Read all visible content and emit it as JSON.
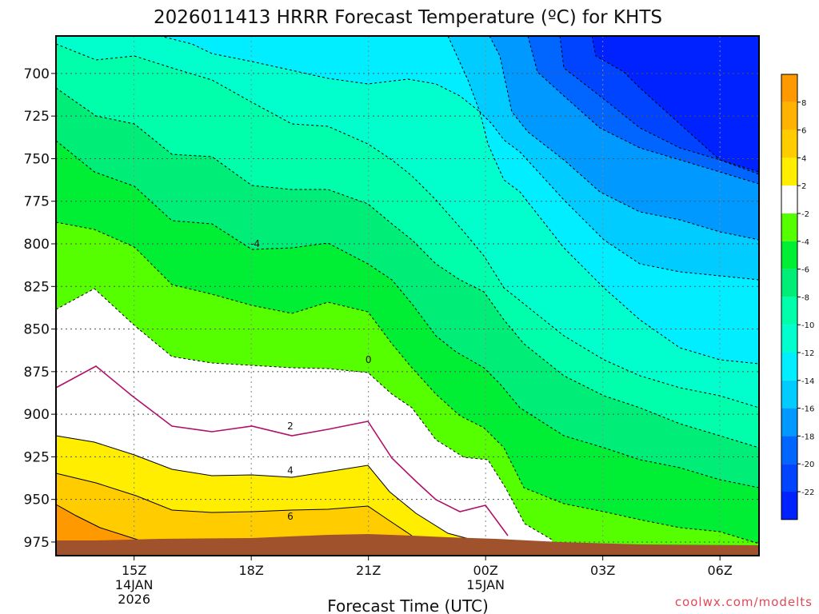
{
  "chart_data": {
    "type": "heatmap",
    "title": "2026011413 HRRR Forecast Temperature (ºC) for KHTS",
    "xlabel": "Forecast Time (UTC)",
    "ylabel": "",
    "y_axis": {
      "ticks": [
        700,
        725,
        750,
        775,
        800,
        825,
        850,
        875,
        900,
        925,
        950,
        975
      ],
      "range_hPa": [
        678,
        983
      ],
      "inverted": true
    },
    "x_axis": {
      "ticks": [
        {
          "hour": 2,
          "label": "15Z",
          "sub1": "14JAN",
          "sub2": "2026"
        },
        {
          "hour": 5,
          "label": "18Z",
          "sub1": "",
          "sub2": ""
        },
        {
          "hour": 8,
          "label": "21Z",
          "sub1": "",
          "sub2": ""
        },
        {
          "hour": 11,
          "label": "00Z",
          "sub1": "15JAN",
          "sub2": ""
        },
        {
          "hour": 14,
          "label": "03Z",
          "sub1": "",
          "sub2": ""
        },
        {
          "hour": 17,
          "label": "06Z",
          "sub1": "",
          "sub2": ""
        }
      ],
      "range_hours": [
        0,
        18
      ]
    },
    "contour_labels": [
      {
        "text": "-4",
        "hour": 5.1,
        "p": 800
      },
      {
        "text": "0",
        "hour": 8.0,
        "p": 868
      },
      {
        "text": "2",
        "hour": 6.0,
        "p": 907
      },
      {
        "text": "4",
        "hour": 6.0,
        "p": 933
      },
      {
        "text": "6",
        "hour": 6.0,
        "p": 960
      }
    ],
    "colorbar": {
      "labels": [
        "8",
        "6",
        "4",
        "2",
        "-2",
        "-4",
        "-6",
        "-8",
        "-10",
        "-12",
        "-14",
        "-16",
        "-18",
        "-20",
        "-22"
      ],
      "colors": [
        "#ff9900",
        "#ffb300",
        "#ffcc00",
        "#ffee00",
        "#ffffff",
        "#55ff00",
        "#00ee33",
        "#00ee77",
        "#00ffaa",
        "#00ffcc",
        "#00eeff",
        "#00ccff",
        "#0099ff",
        "#0066ff",
        "#0044ff",
        "#0022ff"
      ]
    },
    "ground_color": "#a0522d"
  },
  "credit": "coolwx.com/modelts"
}
